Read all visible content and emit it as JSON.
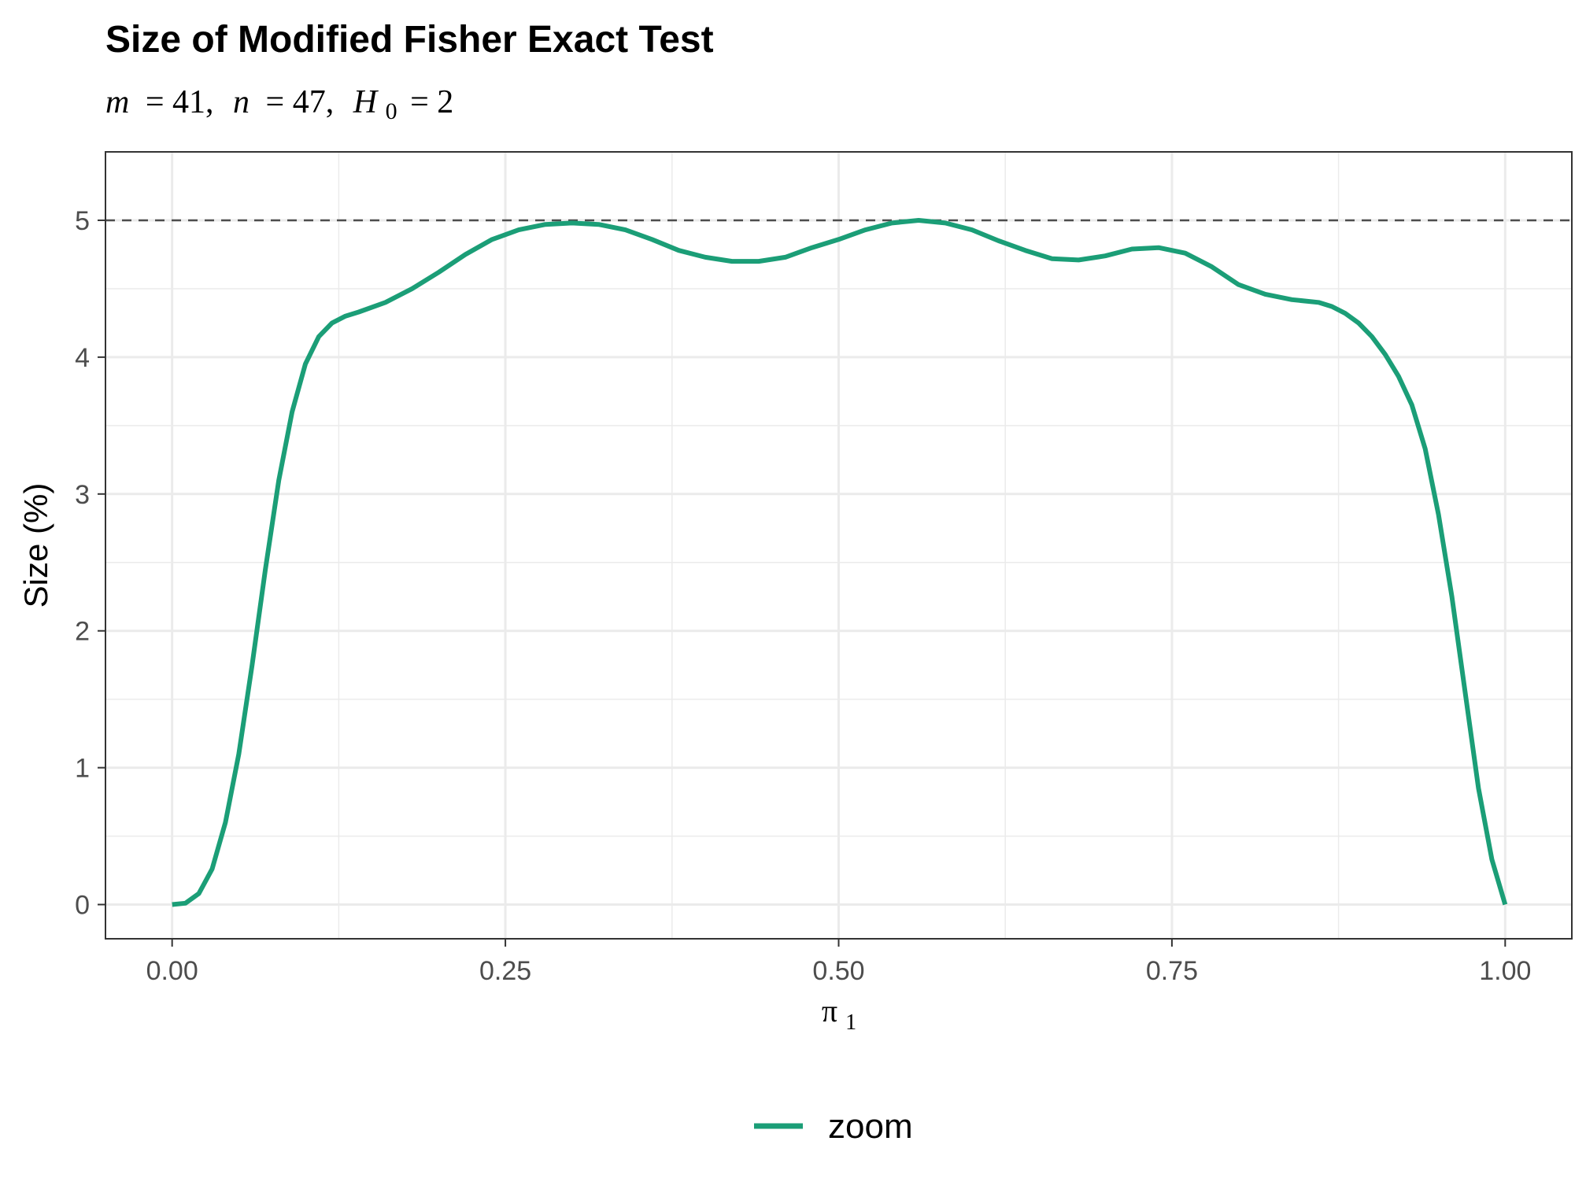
{
  "chart_data": {
    "type": "line",
    "title": "Size of Modified Fisher Exact Test",
    "subtitle": {
      "m_label": "m",
      "m_value": "= 41,",
      "n_label": "n",
      "n_value": "= 47,",
      "h_label": "H",
      "h_sub": "0",
      "h_value": "= 2"
    },
    "xlabel": {
      "symbol": "π",
      "sub": "1"
    },
    "ylabel": "Size (%)",
    "xlim": [
      -0.05,
      1.05
    ],
    "ylim": [
      -0.25,
      5.5
    ],
    "x_ticks": [
      0,
      0.25,
      0.5,
      0.75,
      1
    ],
    "x_tick_labels": [
      "0.00",
      "0.25",
      "0.50",
      "0.75",
      "1.00"
    ],
    "y_ticks": [
      0,
      1,
      2,
      3,
      4,
      5
    ],
    "y_tick_labels": [
      "0",
      "1",
      "2",
      "3",
      "4",
      "5"
    ],
    "grid": true,
    "reference_line": {
      "y": 5,
      "style": "dashed",
      "color": "#4d4d4d"
    },
    "legend_position": "bottom",
    "series": [
      {
        "name": "zoom",
        "color": "#1b9e77",
        "x": [
          0,
          0.01,
          0.02,
          0.03,
          0.04,
          0.05,
          0.06,
          0.07,
          0.08,
          0.09,
          0.1,
          0.11,
          0.12,
          0.13,
          0.14,
          0.16,
          0.18,
          0.2,
          0.22,
          0.24,
          0.26,
          0.28,
          0.3,
          0.32,
          0.34,
          0.36,
          0.38,
          0.4,
          0.42,
          0.44,
          0.46,
          0.48,
          0.5,
          0.52,
          0.54,
          0.56,
          0.58,
          0.6,
          0.62,
          0.64,
          0.66,
          0.68,
          0.7,
          0.72,
          0.74,
          0.76,
          0.78,
          0.8,
          0.82,
          0.84,
          0.86,
          0.87,
          0.88,
          0.89,
          0.9,
          0.91,
          0.92,
          0.93,
          0.94,
          0.95,
          0.96,
          0.97,
          0.98,
          0.99,
          1.0
        ],
        "values": [
          0,
          0.01,
          0.08,
          0.26,
          0.6,
          1.1,
          1.75,
          2.45,
          3.1,
          3.6,
          3.95,
          4.15,
          4.25,
          4.3,
          4.33,
          4.4,
          4.5,
          4.62,
          4.75,
          4.86,
          4.93,
          4.97,
          4.98,
          4.97,
          4.93,
          4.86,
          4.78,
          4.73,
          4.7,
          4.7,
          4.73,
          4.8,
          4.86,
          4.93,
          4.98,
          5.0,
          4.98,
          4.93,
          4.85,
          4.78,
          4.72,
          4.71,
          4.74,
          4.79,
          4.8,
          4.76,
          4.66,
          4.53,
          4.46,
          4.42,
          4.4,
          4.37,
          4.32,
          4.25,
          4.15,
          4.02,
          3.86,
          3.65,
          3.33,
          2.85,
          2.25,
          1.55,
          0.85,
          0.33,
          0
        ]
      }
    ]
  }
}
